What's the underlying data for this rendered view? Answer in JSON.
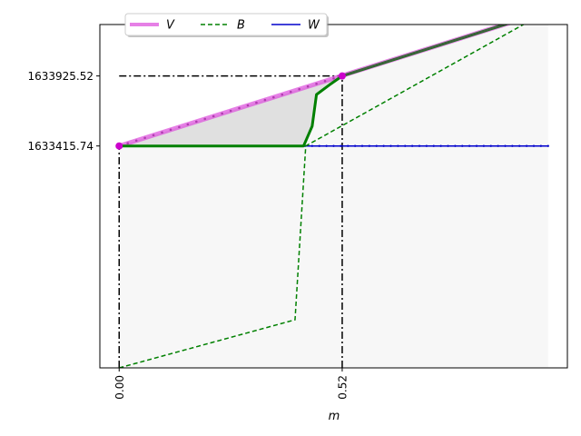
{
  "chart_data": {
    "type": "line",
    "xlabel": "m",
    "ylabel": "",
    "title": "",
    "xlim": [
      -0.045,
      1.045
    ],
    "ylim": [
      1631800,
      1634300
    ],
    "x_ticks": [
      {
        "value": 0.0,
        "label": "0.00"
      },
      {
        "value": 0.52,
        "label": "0.52"
      }
    ],
    "y_ticks": [
      {
        "value": 1633415.74,
        "label": "1633415.74"
      },
      {
        "value": 1633925.52,
        "label": "1633925.52"
      }
    ],
    "legend": {
      "placement": "top-center",
      "ncol": 3
    },
    "series": [
      {
        "name": "V",
        "color": "#dd55dd",
        "style": "solid-thick",
        "x": [
          0.0,
          1.0
        ],
        "y": [
          1633415.74,
          1634400.0
        ]
      },
      {
        "name": "B",
        "color": "#008000",
        "style": "dashed",
        "x": [
          0.0,
          0.41,
          0.435,
          1.0
        ],
        "y": [
          1631800.0,
          1632150.0,
          1633415.74,
          1634400.0
        ]
      },
      {
        "name": "W",
        "color": "#0000cc",
        "style": "solid-thin-markers",
        "x": [
          0.0,
          1.0
        ],
        "y": [
          1633415.74,
          1633415.74
        ]
      }
    ],
    "max_envelope": {
      "color": "#008000",
      "x": [
        0.0,
        0.43,
        0.45,
        0.46,
        0.49,
        0.52,
        1.0
      ],
      "y": [
        1633415.74,
        1633415.74,
        1633560.0,
        1633790.0,
        1633860.0,
        1633925.52,
        1634400.0
      ]
    },
    "points": [
      {
        "x": 0.0,
        "y": 1633415.74,
        "color": "#cc00cc"
      },
      {
        "x": 0.52,
        "y": 1633925.52,
        "color": "#cc00cc"
      }
    ],
    "reference_lines": [
      {
        "x0": 0.0,
        "x1": 0.52,
        "y0": 1633925.52,
        "y1": 1633925.52
      },
      {
        "x0": 0.0,
        "x1": 0.0,
        "y0": 1631800.0,
        "y1": 1633415.74
      },
      {
        "x0": 0.52,
        "x1": 0.52,
        "y0": 1631800.0,
        "y1": 1633925.52
      }
    ],
    "shaded_regions": [
      {
        "kind": "between_envelope_and_V",
        "x_range": [
          0.0,
          0.52
        ],
        "color": "#e0e0e0"
      },
      {
        "kind": "under_curves",
        "x_range": [
          0.0,
          1.0
        ],
        "color": "#f7f7f7"
      }
    ]
  }
}
